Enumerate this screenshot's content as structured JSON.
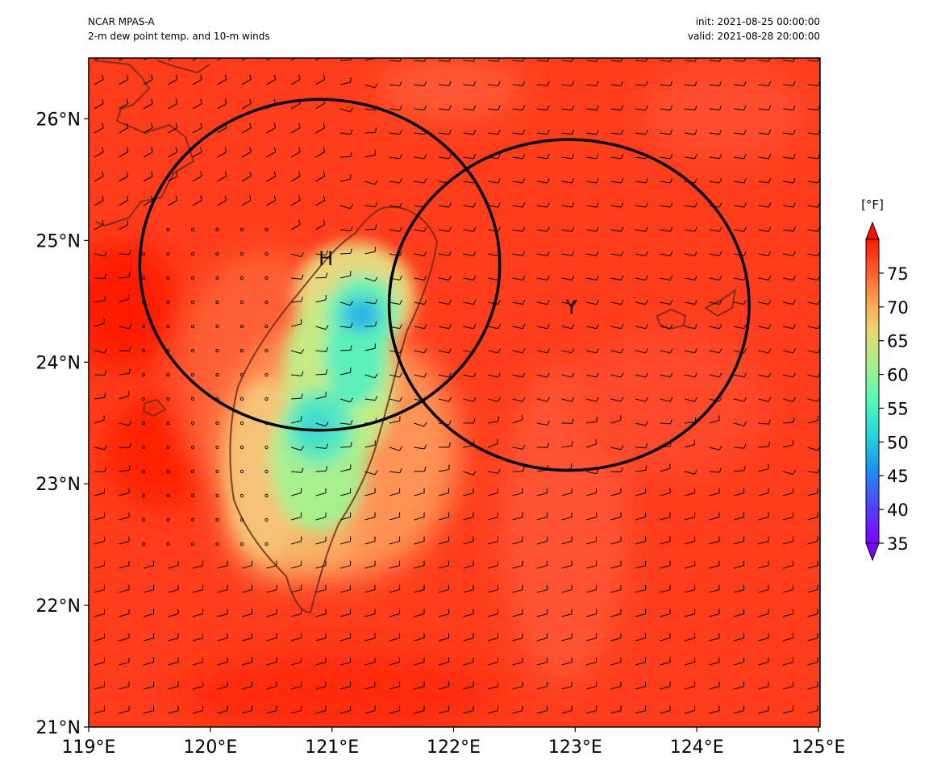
{
  "header": {
    "model": "NCAR MPAS-A",
    "field": "2-m dew point temp. and 10-m winds",
    "init": "init: 2021-08-25 00:00:00",
    "valid": "valid: 2021-08-28 20:00:00"
  },
  "chart_data": {
    "type": "heatmap",
    "title": "2-m dew point temp. and 10-m winds",
    "x_axis": {
      "range": [
        119,
        125
      ],
      "ticks": [
        "119°E",
        "120°E",
        "121°E",
        "122°E",
        "123°E",
        "124°E",
        "125°E"
      ]
    },
    "y_axis": {
      "range": [
        21,
        26.5
      ],
      "ticks": [
        "21°N",
        "22°N",
        "23°N",
        "24°N",
        "25°N",
        "26°N"
      ]
    },
    "colorbar": {
      "unit": "[°F]",
      "range": [
        35,
        80
      ],
      "ticks": [
        "35",
        "40",
        "45",
        "50",
        "55",
        "60",
        "65",
        "70",
        "75"
      ],
      "colormap": "rainbow",
      "extend": "both"
    },
    "circles": [
      {
        "center_lon": 120.9,
        "center_lat": 24.8,
        "radius_deg_lon": 1.48,
        "radius_deg_lat": 1.36
      },
      {
        "center_lon": 122.95,
        "center_lat": 24.47,
        "radius_deg_lon": 1.48,
        "radius_deg_lat": 1.36
      }
    ],
    "markers": [
      {
        "text": "H",
        "lon": 120.95,
        "lat": 24.85
      },
      {
        "text": "Y",
        "lon": 122.97,
        "lat": 24.45
      }
    ],
    "field_features": [
      {
        "name": "background",
        "value_F": 76
      },
      {
        "name": "taiwan-plain",
        "value_F": 68,
        "lon": 120.6,
        "lat": 23.3
      },
      {
        "name": "taiwan-mountains",
        "value_F": 58,
        "lon": 121.1,
        "lat": 23.9
      },
      {
        "name": "min-cold-core",
        "value_F": 47,
        "lon": 121.2,
        "lat": 24.45
      },
      {
        "name": "warm-core-west",
        "value_F": 80,
        "lon": 119.4,
        "lat": 24.5
      }
    ]
  }
}
